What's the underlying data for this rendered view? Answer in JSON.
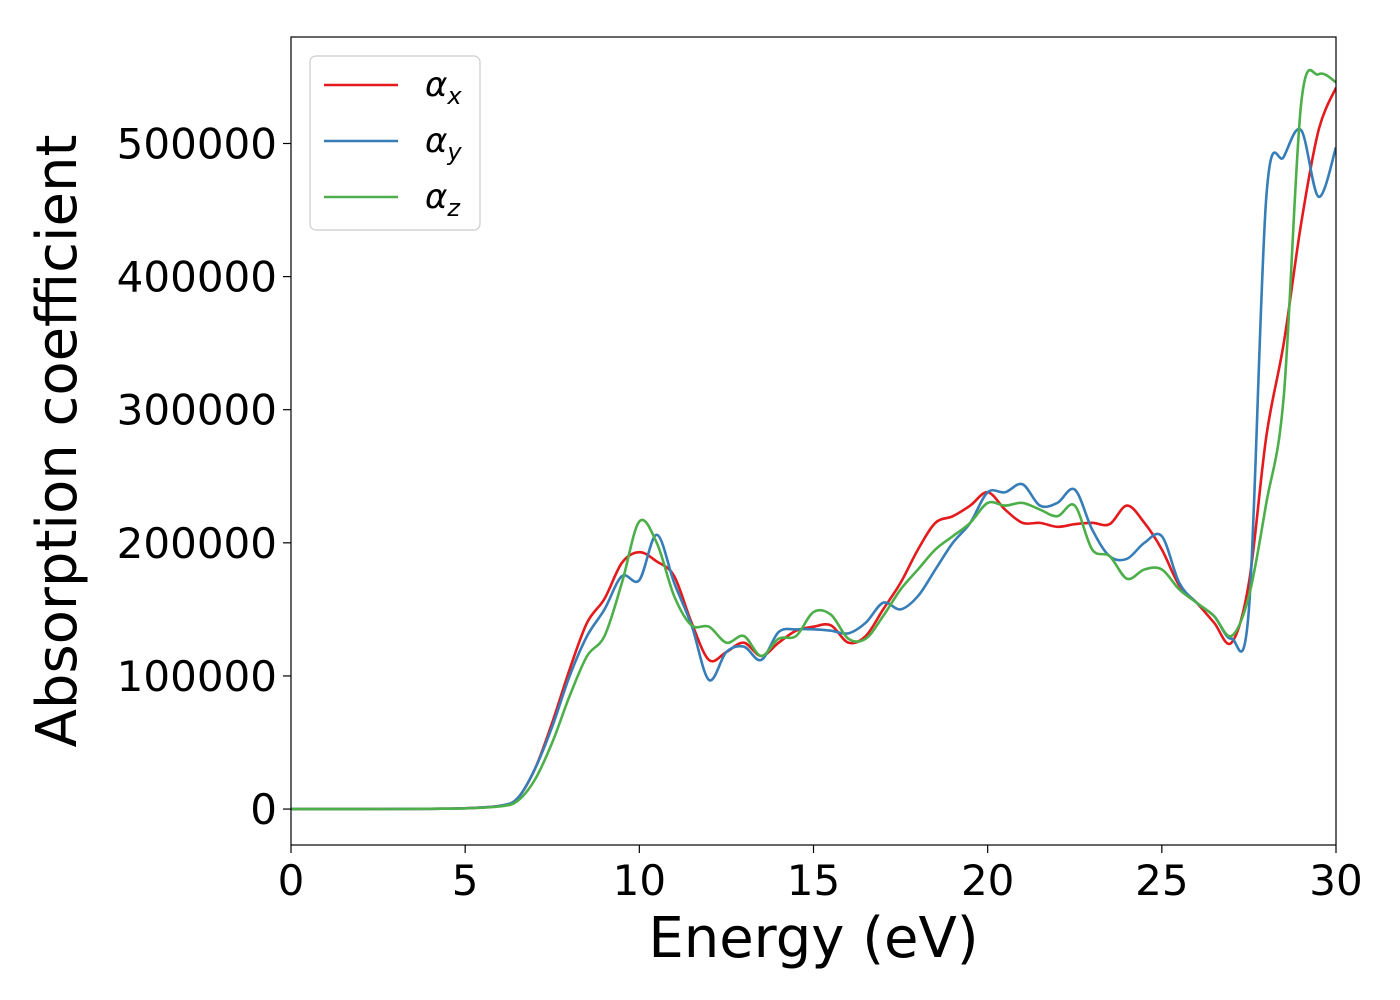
{
  "chart_data": {
    "type": "line",
    "xlabel": "Energy (eV)",
    "ylabel": "Absorption coefficient",
    "xlim": [
      0,
      30
    ],
    "ylim": [
      -27000,
      580000
    ],
    "xticks": [
      0,
      5,
      10,
      15,
      20,
      25,
      30
    ],
    "xtick_labels": [
      "0",
      "5",
      "10",
      "15",
      "20",
      "25",
      "30"
    ],
    "yticks": [
      0,
      100000,
      200000,
      300000,
      400000,
      500000
    ],
    "ytick_labels": [
      "0",
      "100000",
      "200000",
      "300000",
      "400000",
      "500000"
    ],
    "grid": false,
    "legend_position": "top-left",
    "series": [
      {
        "name": "α",
        "subscript": "x",
        "color": "#e41a1c",
        "x": [
          0,
          2,
          4,
          5,
          6,
          6.5,
          7,
          7.5,
          8,
          8.5,
          9,
          9.5,
          10,
          10.5,
          11,
          11.5,
          12,
          12.5,
          13,
          13.5,
          14,
          14.5,
          15,
          15.5,
          16,
          16.5,
          17,
          17.5,
          18,
          18.5,
          19,
          19.5,
          20,
          20.5,
          21,
          21.5,
          22,
          22.5,
          23,
          23.5,
          24,
          24.5,
          25,
          25.5,
          26,
          26.5,
          27,
          27.5,
          28,
          28.5,
          29,
          29.5,
          30
        ],
        "y": [
          0,
          0,
          200,
          600,
          2500,
          8000,
          30000,
          65000,
          105000,
          140000,
          158000,
          185000,
          193000,
          186000,
          175000,
          140000,
          112000,
          118000,
          125000,
          115000,
          125000,
          134000,
          137000,
          138000,
          125000,
          130000,
          150000,
          170000,
          195000,
          215000,
          220000,
          228000,
          238000,
          225000,
          215000,
          215000,
          212000,
          214000,
          215000,
          214000,
          228000,
          215000,
          195000,
          168000,
          155000,
          140000,
          125000,
          170000,
          280000,
          350000,
          440000,
          510000,
          542000
        ]
      },
      {
        "name": "α",
        "subscript": "y",
        "color": "#377eb8",
        "x": [
          0,
          2,
          4,
          5,
          6,
          6.5,
          7,
          7.5,
          8,
          8.5,
          9,
          9.5,
          10,
          10.5,
          11,
          11.5,
          12,
          12.5,
          13,
          13.5,
          14,
          14.5,
          15,
          15.5,
          16,
          16.5,
          17,
          17.5,
          18,
          18.5,
          19,
          19.5,
          20,
          20.5,
          21,
          21.5,
          22,
          22.5,
          23,
          23.5,
          24,
          24.5,
          25,
          25.5,
          26,
          26.5,
          27,
          27.5,
          28,
          28.5,
          29,
          29.5,
          30
        ],
        "y": [
          0,
          0,
          200,
          600,
          2500,
          8000,
          30000,
          62000,
          100000,
          130000,
          150000,
          175000,
          172000,
          206000,
          170000,
          138000,
          97000,
          118000,
          122000,
          112000,
          133000,
          135000,
          135000,
          134000,
          132000,
          140000,
          155000,
          150000,
          160000,
          180000,
          200000,
          215000,
          238000,
          238000,
          244000,
          228000,
          230000,
          240000,
          210000,
          190000,
          188000,
          200000,
          205000,
          170000,
          155000,
          145000,
          128000,
          150000,
          460000,
          490000,
          510000,
          460000,
          497000
        ]
      },
      {
        "name": "α",
        "subscript": "z",
        "color": "#4daf4a",
        "x": [
          0,
          2,
          4,
          5,
          6,
          6.5,
          7,
          7.5,
          8,
          8.5,
          9,
          9.5,
          10,
          10.5,
          11,
          11.5,
          12,
          12.5,
          13,
          13.5,
          14,
          14.5,
          15,
          15.5,
          16,
          16.5,
          17,
          17.5,
          18,
          18.5,
          19,
          19.5,
          20,
          20.5,
          21,
          21.5,
          22,
          22.5,
          23,
          23.5,
          24,
          24.5,
          25,
          25.5,
          26,
          26.5,
          27,
          27.5,
          28,
          28.5,
          29,
          29.5,
          30
        ],
        "y": [
          0,
          0,
          200,
          500,
          2000,
          6000,
          22000,
          50000,
          85000,
          115000,
          130000,
          170000,
          216000,
          200000,
          160000,
          138000,
          137000,
          125000,
          130000,
          115000,
          128000,
          130000,
          148000,
          146000,
          128000,
          128000,
          145000,
          165000,
          180000,
          195000,
          205000,
          215000,
          230000,
          228000,
          230000,
          225000,
          220000,
          228000,
          195000,
          190000,
          173000,
          180000,
          180000,
          165000,
          155000,
          145000,
          130000,
          160000,
          230000,
          310000,
          530000,
          552000,
          546000
        ]
      }
    ]
  }
}
